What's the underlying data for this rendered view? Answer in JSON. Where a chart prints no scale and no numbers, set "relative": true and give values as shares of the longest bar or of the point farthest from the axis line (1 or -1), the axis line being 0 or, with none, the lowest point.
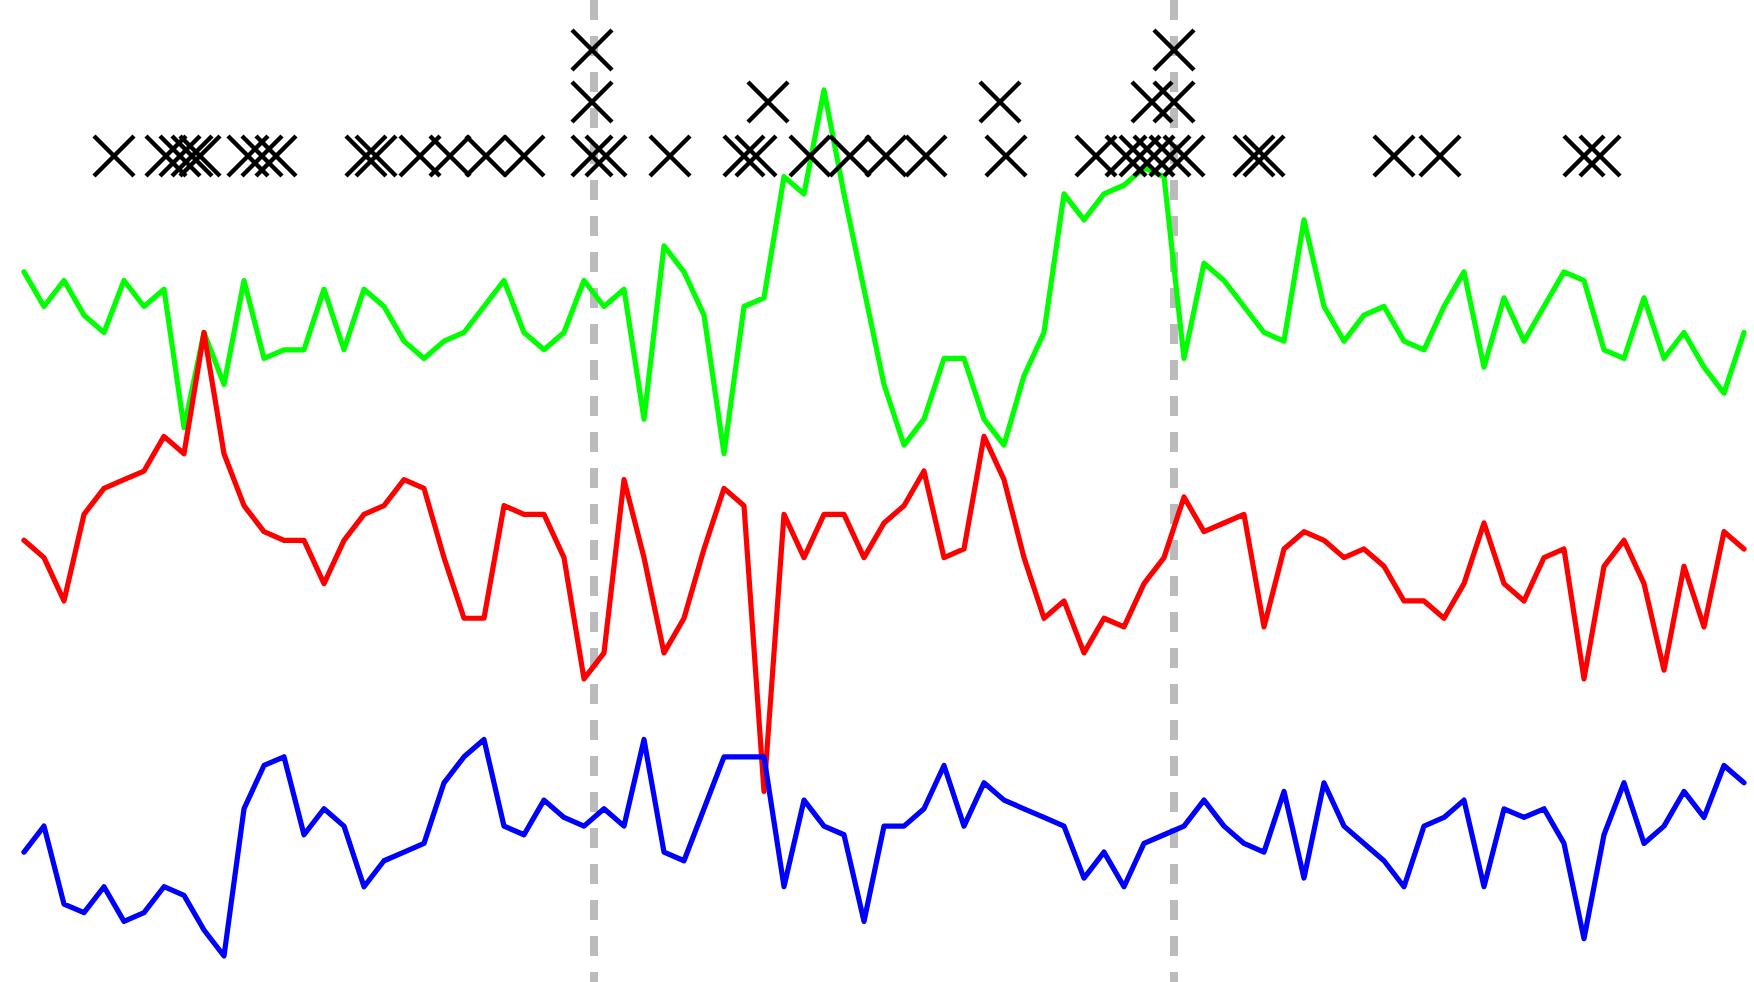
{
  "chart_data": {
    "type": "line",
    "relative": true,
    "line_style": "solid",
    "categories": [
      null,
      null,
      null,
      null,
      null,
      null,
      null,
      null,
      null,
      null,
      null,
      null,
      null,
      null,
      null,
      null,
      null,
      null,
      null,
      null,
      null,
      null,
      null,
      null,
      null,
      null,
      null,
      null,
      null,
      null,
      null,
      null,
      null,
      null,
      null,
      null,
      null,
      null,
      null,
      null,
      null,
      null,
      null,
      null,
      null,
      null,
      null,
      null,
      null,
      null,
      null,
      null,
      null,
      null,
      null,
      null,
      null,
      null,
      null,
      null,
      null,
      null,
      null,
      null,
      null,
      null,
      null,
      null,
      null,
      null,
      null,
      null,
      null,
      null,
      null,
      null,
      null,
      null,
      null,
      null,
      null,
      null,
      null,
      null,
      null,
      null,
      null
    ],
    "series": [
      {
        "color": "#00ff00",
        "values": [
          0.79,
          0.75,
          0.78,
          0.74,
          0.72,
          0.78,
          0.75,
          0.77,
          0.61,
          0.72,
          0.66,
          0.78,
          0.69,
          0.7,
          0.7,
          0.77,
          0.7,
          0.77,
          0.75,
          0.71,
          0.69,
          0.71,
          0.72,
          0.75,
          0.78,
          0.72,
          0.7,
          0.72,
          0.78,
          0.75,
          0.77,
          0.62,
          0.82,
          0.79,
          0.74,
          0.58,
          0.75,
          0.76,
          0.9,
          0.88,
          1,
          0.88,
          0.77,
          0.66,
          0.59,
          0.62,
          0.69,
          0.69,
          0.62,
          0.59,
          0.67,
          0.72,
          0.88,
          0.85,
          0.88,
          0.89,
          0.91,
          0.9,
          0.69,
          0.8,
          0.78,
          0.75,
          0.72,
          0.71,
          0.85,
          0.75,
          0.71,
          0.74,
          0.75,
          0.71,
          0.7,
          0.75,
          0.79,
          0.68,
          0.76,
          0.71,
          0.75,
          0.79,
          0.78,
          0.7,
          0.69,
          0.76,
          0.69,
          0.72,
          0.68,
          0.65,
          0.72
        ]
      },
      {
        "color": "#ff0000",
        "values": [
          0.48,
          0.46,
          0.41,
          0.51,
          0.54,
          0.55,
          0.56,
          0.6,
          0.58,
          0.72,
          0.58,
          0.52,
          0.49,
          0.48,
          0.48,
          0.43,
          0.48,
          0.51,
          0.52,
          0.55,
          0.54,
          0.46,
          0.39,
          0.39,
          0.52,
          0.51,
          0.51,
          0.46,
          0.32,
          0.35,
          0.55,
          0.46,
          0.35,
          0.39,
          0.47,
          0.54,
          0.52,
          0.19,
          0.51,
          0.46,
          0.51,
          0.51,
          0.46,
          0.5,
          0.52,
          0.56,
          0.46,
          0.47,
          0.6,
          0.55,
          0.46,
          0.39,
          0.41,
          0.35,
          0.39,
          0.38,
          0.43,
          0.46,
          0.53,
          0.49,
          0.5,
          0.51,
          0.38,
          0.47,
          0.49,
          0.48,
          0.46,
          0.47,
          0.45,
          0.41,
          0.41,
          0.39,
          0.43,
          0.5,
          0.43,
          0.41,
          0.46,
          0.47,
          0.32,
          0.45,
          0.48,
          0.43,
          0.33,
          0.45,
          0.38,
          0.49,
          0.47
        ]
      },
      {
        "color": "#0000ff",
        "values": [
          0.12,
          0.15,
          0.06,
          0.05,
          0.08,
          0.04,
          0.05,
          0.08,
          0.07,
          0.03,
          0,
          0.17,
          0.22,
          0.23,
          0.14,
          0.17,
          0.15,
          0.08,
          0.11,
          0.12,
          0.13,
          0.2,
          0.23,
          0.25,
          0.15,
          0.14,
          0.18,
          0.16,
          0.15,
          0.17,
          0.15,
          0.25,
          0.12,
          0.11,
          0.17,
          0.23,
          0.23,
          0.23,
          0.08,
          0.18,
          0.15,
          0.14,
          0.04,
          0.15,
          0.15,
          0.17,
          0.22,
          0.15,
          0.2,
          0.18,
          0.17,
          0.16,
          0.15,
          0.09,
          0.12,
          0.08,
          0.13,
          0.14,
          0.15,
          0.18,
          0.15,
          0.13,
          0.12,
          0.19,
          0.09,
          0.2,
          0.15,
          0.13,
          0.11,
          0.08,
          0.15,
          0.16,
          0.18,
          0.08,
          0.17,
          0.16,
          0.17,
          0.13,
          0.02,
          0.14,
          0.2,
          0.13,
          0.15,
          0.19,
          0.16,
          0.22,
          0.2
        ]
      }
    ]
  }
}
